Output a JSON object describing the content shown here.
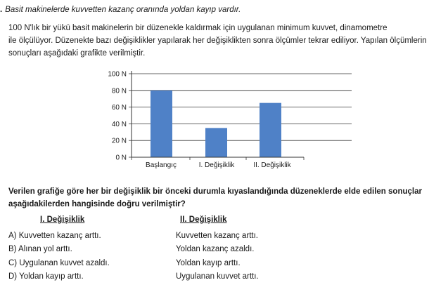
{
  "intro": {
    "marker": ".",
    "text": "Basit makinelerde kuvvetten kazanç oranında yoldan kayıp vardır."
  },
  "paragraph": [
    "100 N'lık bir yükü basit makinelerin bir düzenekle kaldırmak için uygulanan minimum kuvvet, dinamometre",
    "ile ölçülüyor. Düzenekte bazı değişiklikler yapılarak her değişiklikten sonra ölçümler tekrar ediliyor. Yapılan ölçümlerin",
    "sonuçları aşağıdaki grafikte verilmiştir."
  ],
  "chart_data": {
    "type": "bar",
    "categories": [
      "Başlangıç",
      "I. Değişiklik",
      "II. Değişiklik"
    ],
    "values": [
      80,
      35,
      65
    ],
    "y_ticks": [
      0,
      20,
      40,
      60,
      80,
      100
    ],
    "y_tick_labels": [
      "0 N",
      "20 N",
      "40 N",
      "60 N",
      "80 N",
      "100 N"
    ],
    "ylim": [
      0,
      100
    ],
    "grid": true,
    "bar_color": "#4f81c7",
    "title": "",
    "xlabel": "",
    "ylabel": ""
  },
  "question": [
    "Verilen grafiğe göre her bir değişiklik bir önceki durumla kıyaslandığında düzeneklerde elde edilen sonuçlar",
    "aşağıdakilerden hangisinde doğru verilmiştir?"
  ],
  "columns": {
    "first": "I. Değişiklik",
    "second": "II. Değişiklik"
  },
  "options": [
    {
      "label": "A) Kuvvetten kazanç arttı.",
      "second": "Kuvvetten kazanç arttı."
    },
    {
      "label": "B) Alınan yol arttı.",
      "second": "Yoldan kazanç azaldı."
    },
    {
      "label": "C) Uygulanan kuvvet azaldı.",
      "second": "Yoldan kayıp arttı."
    },
    {
      "label": "D) Yoldan kayıp arttı.",
      "second": "Uygulanan kuvvet arttı."
    }
  ]
}
